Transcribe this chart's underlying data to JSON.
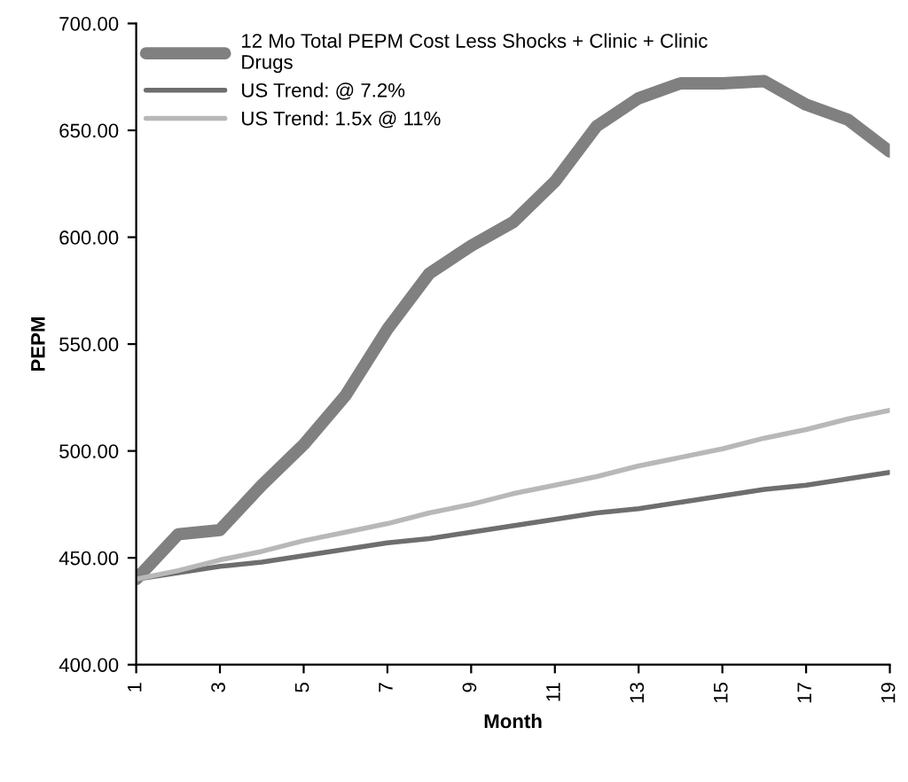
{
  "chart_data": {
    "type": "line",
    "xlabel": "Month",
    "ylabel": "PEPM",
    "x": [
      1,
      2,
      3,
      4,
      5,
      6,
      7,
      8,
      9,
      10,
      11,
      12,
      13,
      14,
      15,
      16,
      17,
      18,
      19
    ],
    "series": [
      {
        "name": "12 Mo Total PEPM Cost Less Shocks + Clinic + Clinic\nDrugs",
        "color": "#808080",
        "values": [
          440,
          461,
          463,
          484,
          503,
          526,
          557,
          583,
          596,
          607,
          626,
          652,
          665,
          672,
          672,
          673,
          662,
          655,
          640
        ]
      },
      {
        "name": "US Trend: @ 7.2%",
        "color": "#6e6e6e",
        "values": [
          440,
          443,
          446,
          448,
          451,
          454,
          457,
          459,
          462,
          465,
          468,
          471,
          473,
          476,
          479,
          482,
          484,
          487,
          490
        ]
      },
      {
        "name": "US Trend: 1.5x @ 11%",
        "color": "#b8b8b8",
        "values": [
          440,
          444,
          449,
          453,
          458,
          462,
          466,
          471,
          475,
          480,
          484,
          488,
          493,
          497,
          501,
          506,
          510,
          515,
          519
        ]
      }
    ],
    "xlim": [
      1,
      19
    ],
    "xticks": [
      1,
      3,
      5,
      7,
      9,
      11,
      13,
      15,
      17,
      19
    ],
    "ylim": [
      400,
      700
    ],
    "yticks": [
      {
        "value": 400,
        "label": "400.00"
      },
      {
        "value": 450,
        "label": "450.00"
      },
      {
        "value": 500,
        "label": "500.00"
      },
      {
        "value": 550,
        "label": "550.00"
      },
      {
        "value": 600,
        "label": "600.00"
      },
      {
        "value": 650,
        "label": "650.00"
      },
      {
        "value": 700,
        "label": "700.00"
      }
    ],
    "legend": "top left",
    "grid": false,
    "marker": "none",
    "line_style": "solid"
  }
}
